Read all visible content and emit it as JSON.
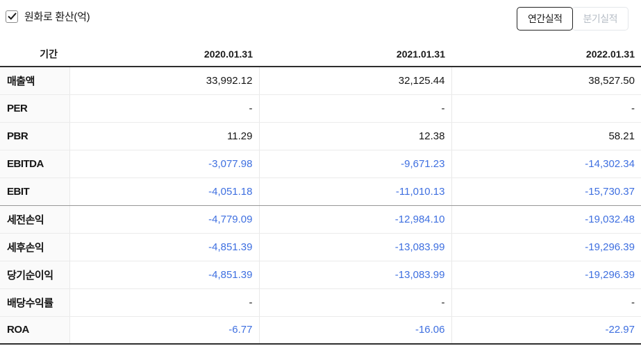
{
  "controls": {
    "checkbox_label": "원화로 환산(억)",
    "checkbox_checked": true,
    "buttons": [
      {
        "label": "연간실적",
        "active": true
      },
      {
        "label": "분기실적",
        "active": false
      }
    ]
  },
  "table": {
    "period_header": "기간",
    "columns": [
      "2020.01.31",
      "2021.01.31",
      "2022.01.31"
    ],
    "rows": [
      {
        "label": "매출액",
        "values": [
          "33,992.12",
          "32,125.44",
          "38,527.50"
        ]
      },
      {
        "label": "PER",
        "values": [
          "-",
          "-",
          "-"
        ]
      },
      {
        "label": "PBR",
        "values": [
          "11.29",
          "12.38",
          "58.21"
        ]
      },
      {
        "label": "EBITDA",
        "values": [
          "-3,077.98",
          "-9,671.23",
          "-14,302.34"
        ]
      },
      {
        "label": "EBIT",
        "values": [
          "-4,051.18",
          "-11,010.13",
          "-15,730.37"
        ]
      },
      {
        "label": "세전손익",
        "values": [
          "-4,779.09",
          "-12,984.10",
          "-19,032.48"
        ]
      },
      {
        "label": "세후손익",
        "values": [
          "-4,851.39",
          "-13,083.99",
          "-19,296.39"
        ]
      },
      {
        "label": "당기순이익",
        "values": [
          "-4,851.39",
          "-13,083.99",
          "-19,296.39"
        ]
      },
      {
        "label": "배당수익률",
        "values": [
          "-",
          "-",
          "-"
        ]
      },
      {
        "label": "ROA",
        "values": [
          "-6.77",
          "-16.06",
          "-22.97"
        ]
      }
    ],
    "group_separator_after": "EBIT",
    "colors": {
      "negative_value": "#3e6fe0",
      "text": "#161616"
    }
  }
}
